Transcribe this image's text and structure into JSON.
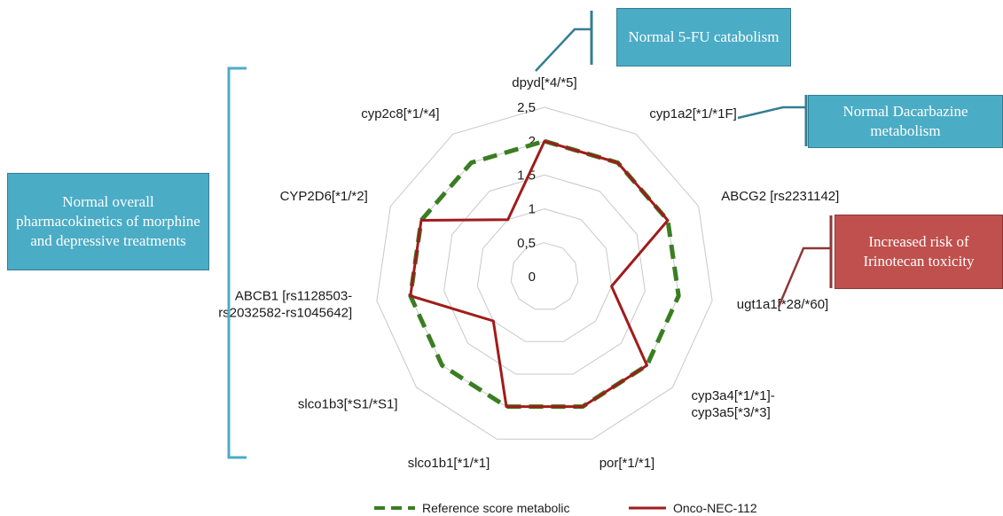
{
  "chart_data": {
    "type": "radar",
    "categories": [
      "dpyd[*4/*5]",
      "cyp1a2[*1/*1F]",
      "ABCG2 [rs2231142]",
      "ugt1a1[*28/*60]",
      "cyp3a4[*1/*1]-\ncyp3a5[*3/*3]",
      "por[*1/*1]",
      "slco1b1[*1/*1]",
      "slco1b3[*S1/*S1]",
      "ABCB1 [rs1128503-\nrs2032582-rs1045642]",
      "CYP2D6[*1/*2]",
      "cyp2c8[*1/*4]"
    ],
    "rlim": [
      0,
      2.5
    ],
    "ticks": [
      "0",
      "0,5",
      "1",
      "1,5",
      "2",
      "2,5"
    ],
    "series": [
      {
        "name": "Reference score metabolic",
        "color": "#3a7d22",
        "style": "dashed",
        "values": [
          2,
          2,
          2,
          2,
          2,
          2,
          2,
          2,
          2,
          2,
          2
        ]
      },
      {
        "name": "Onco-NEC-112",
        "color": "#a11b1b",
        "style": "solid",
        "values": [
          2,
          2,
          2,
          1,
          2,
          2,
          2,
          1,
          2,
          2,
          1
        ]
      }
    ],
    "grid": true
  },
  "callouts": {
    "fu": "Normal 5-FU catabolism",
    "dacarbazine": "Normal Dacarbazine metabolism",
    "irinotecan": "Increased risk of Irinotecan toxicity",
    "morphine": "Normal overall pharmacokinetics of morphine and depressive treatments"
  },
  "colors": {
    "teal": "#4bacc6",
    "red_box": "#c0504d",
    "grid": "#c8c8c8"
  }
}
